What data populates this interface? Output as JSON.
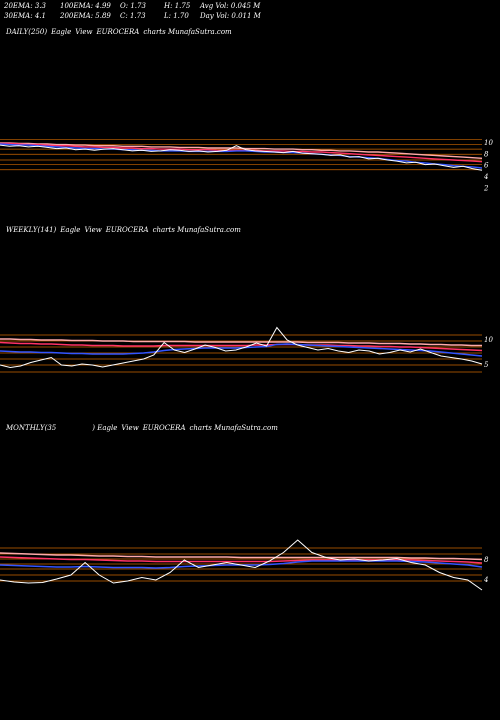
{
  "header": {
    "ema20": "20EMA: 3.3",
    "ema30": "30EMA: 4.1",
    "ema100": "100EMA: 4.99",
    "ema200": "200EMA: 5.89",
    "open": "O: 1.73",
    "close": "C: 1.73",
    "high": "H: 1.75",
    "low": "L: 1.70",
    "avg_vol": "Avg Vol: 0.045 M",
    "day_vol": "Day Vol: 0.011 M"
  },
  "panels": [
    {
      "id": "daily",
      "period_label": "DAILY(250)",
      "pre_label": "Eagle",
      "view_label": "View",
      "symbol": "EUROCERA",
      "site": "charts MunafaSutra.com",
      "ticks": [
        "10",
        "8",
        "6",
        "4",
        "2"
      ]
    },
    {
      "id": "weekly",
      "period_label": "WEEKLY(141)",
      "pre_label": "Eagle",
      "view_label": "View",
      "symbol": "EUROCERA",
      "site": "charts MunafaSutra.com",
      "ticks": [
        "10",
        "5"
      ]
    },
    {
      "id": "monthly",
      "period_label": "MONTHLY(35",
      "pre_label": ") Eagle",
      "view_label": "View",
      "symbol": "EUROCERA",
      "site": "charts MunafaSutra.com",
      "ticks": [
        "8",
        "4"
      ]
    }
  ],
  "chart_data": [
    {
      "type": "line",
      "title": "DAILY(250) Eagle View EUROCERA charts MunafaSutra.com",
      "ylim": [
        0,
        14
      ],
      "y_ticks": [
        10,
        8,
        6,
        4,
        2
      ],
      "grid": false,
      "series": [
        {
          "color": "#ffffff",
          "values": [
            9.6,
            9.4,
            9.5,
            9.3,
            9.4,
            9.2,
            9.0,
            9.1,
            8.8,
            8.9,
            8.7,
            8.9,
            9.0,
            8.8,
            8.6,
            8.7,
            8.5,
            8.6,
            8.8,
            8.7,
            8.5,
            8.6,
            8.4,
            8.5,
            8.7,
            9.5,
            8.8,
            8.6,
            8.5,
            8.4,
            8.3,
            8.5,
            8.2,
            8.1,
            8.0,
            7.8,
            7.9,
            7.5,
            7.6,
            7.2,
            7.3,
            7.0,
            6.8,
            6.5,
            6.6,
            6.2,
            6.3,
            6.0,
            5.7,
            5.9,
            5.5,
            5.2
          ]
        },
        {
          "color": "#3355ff",
          "values": [
            9.8,
            9.7,
            9.6,
            9.6,
            9.5,
            9.4,
            9.3,
            9.2,
            9.1,
            9.0,
            9.0,
            8.9,
            8.9,
            8.8,
            8.8,
            8.7,
            8.7,
            8.6,
            8.6,
            8.6,
            8.5,
            8.5,
            8.5,
            8.5,
            8.5,
            8.6,
            8.6,
            8.5,
            8.4,
            8.4,
            8.3,
            8.3,
            8.2,
            8.1,
            8.0,
            7.9,
            7.8,
            7.6,
            7.5,
            7.4,
            7.3,
            7.1,
            6.9,
            6.8,
            6.6,
            6.5,
            6.3,
            6.2,
            6.0,
            5.9,
            5.8,
            5.6
          ]
        },
        {
          "color": "#ff3366",
          "values": [
            9.9,
            9.9,
            9.8,
            9.7,
            9.7,
            9.6,
            9.5,
            9.5,
            9.4,
            9.3,
            9.3,
            9.2,
            9.2,
            9.1,
            9.1,
            9.0,
            9.0,
            8.9,
            8.9,
            8.9,
            8.8,
            8.8,
            8.8,
            8.7,
            8.7,
            8.7,
            8.7,
            8.7,
            8.6,
            8.6,
            8.6,
            8.5,
            8.5,
            8.4,
            8.4,
            8.3,
            8.2,
            8.1,
            8.0,
            7.9,
            7.8,
            7.7,
            7.6,
            7.5,
            7.4,
            7.3,
            7.2,
            7.1,
            7.0,
            6.9,
            6.8,
            6.7
          ]
        },
        {
          "color": "#ffaaaa",
          "values": [
            10.0,
            10.0,
            9.9,
            9.9,
            9.8,
            9.8,
            9.7,
            9.7,
            9.6,
            9.6,
            9.5,
            9.5,
            9.5,
            9.4,
            9.4,
            9.4,
            9.3,
            9.3,
            9.3,
            9.2,
            9.2,
            9.2,
            9.1,
            9.1,
            9.1,
            9.1,
            9.0,
            9.0,
            9.0,
            8.9,
            8.9,
            8.9,
            8.8,
            8.8,
            8.7,
            8.7,
            8.6,
            8.6,
            8.5,
            8.4,
            8.4,
            8.3,
            8.2,
            8.1,
            8.0,
            7.9,
            7.8,
            7.7,
            7.6,
            7.5,
            7.4,
            7.3
          ]
        }
      ],
      "hlines": [
        10.6,
        9.7,
        8.9,
        8.0,
        7.0,
        6.2,
        5.3
      ]
    },
    {
      "type": "line",
      "title": "WEEKLY(141) Eagle View EUROCERA charts MunafaSutra.com",
      "ylim": [
        0,
        16
      ],
      "y_ticks": [
        10,
        5
      ],
      "grid": false,
      "series": [
        {
          "color": "#ffffff",
          "values": [
            5.0,
            4.5,
            4.8,
            5.5,
            6.0,
            6.5,
            5.0,
            4.8,
            5.2,
            5.0,
            4.6,
            5.0,
            5.4,
            5.8,
            6.2,
            7.0,
            9.5,
            8.0,
            7.5,
            8.2,
            9.0,
            8.5,
            7.8,
            8.0,
            8.6,
            9.4,
            8.8,
            12.5,
            10.0,
            9.0,
            8.5,
            8.0,
            8.3,
            7.8,
            7.5,
            8.0,
            7.8,
            7.2,
            7.5,
            8.0,
            7.6,
            8.2,
            7.5,
            6.8,
            6.5,
            6.2,
            5.8,
            5.2
          ]
        },
        {
          "color": "#3355ff",
          "values": [
            7.8,
            7.7,
            7.6,
            7.6,
            7.5,
            7.5,
            7.4,
            7.3,
            7.3,
            7.2,
            7.2,
            7.2,
            7.2,
            7.3,
            7.4,
            7.6,
            7.9,
            8.1,
            8.2,
            8.3,
            8.4,
            8.4,
            8.4,
            8.4,
            8.5,
            8.6,
            8.7,
            9.1,
            9.2,
            9.1,
            9.0,
            8.9,
            8.8,
            8.7,
            8.6,
            8.5,
            8.4,
            8.3,
            8.2,
            8.1,
            8.0,
            7.9,
            7.8,
            7.6,
            7.4,
            7.2,
            7.0,
            6.8
          ]
        },
        {
          "color": "#ff3366",
          "values": [
            9.5,
            9.4,
            9.3,
            9.3,
            9.2,
            9.2,
            9.1,
            9.0,
            9.0,
            8.9,
            8.9,
            8.9,
            8.8,
            8.8,
            8.8,
            8.8,
            8.9,
            8.9,
            8.9,
            8.9,
            8.9,
            8.9,
            8.9,
            8.9,
            8.9,
            9.0,
            9.0,
            9.1,
            9.1,
            9.1,
            9.0,
            9.0,
            9.0,
            8.9,
            8.9,
            8.8,
            8.8,
            8.7,
            8.7,
            8.6,
            8.6,
            8.5,
            8.4,
            8.3,
            8.2,
            8.1,
            8.0,
            7.9
          ]
        },
        {
          "color": "#ffaaaa",
          "values": [
            10.2,
            10.2,
            10.1,
            10.1,
            10.0,
            10.0,
            10.0,
            9.9,
            9.9,
            9.9,
            9.8,
            9.8,
            9.8,
            9.7,
            9.7,
            9.7,
            9.7,
            9.7,
            9.7,
            9.6,
            9.6,
            9.6,
            9.6,
            9.6,
            9.6,
            9.6,
            9.6,
            9.6,
            9.6,
            9.6,
            9.5,
            9.5,
            9.5,
            9.5,
            9.4,
            9.4,
            9.4,
            9.3,
            9.3,
            9.3,
            9.2,
            9.2,
            9.1,
            9.1,
            9.0,
            9.0,
            8.9,
            8.9
          ]
        }
      ],
      "hlines": [
        11.0,
        9.8,
        8.6,
        7.4,
        6.2,
        5.0,
        3.6
      ]
    },
    {
      "type": "line",
      "title": "MONTHLY(35) Eagle View EUROCERA charts MunafaSutra.com",
      "ylim": [
        0,
        16
      ],
      "y_ticks": [
        8,
        4
      ],
      "grid": false,
      "series": [
        {
          "color": "#ffffff",
          "values": [
            4.0,
            3.6,
            3.4,
            3.5,
            4.2,
            5.0,
            7.5,
            5.0,
            3.4,
            3.8,
            4.5,
            4.0,
            5.5,
            8.0,
            6.5,
            7.0,
            7.5,
            7.0,
            6.5,
            7.8,
            9.5,
            12.0,
            9.5,
            8.5,
            8.0,
            8.2,
            7.8,
            8.0,
            8.3,
            7.5,
            7.0,
            5.5,
            4.5,
            4.0,
            2.0
          ]
        },
        {
          "color": "#3355ff",
          "values": [
            7.0,
            6.9,
            6.8,
            6.7,
            6.6,
            6.6,
            6.7,
            6.6,
            6.5,
            6.5,
            6.5,
            6.4,
            6.5,
            6.7,
            6.8,
            6.9,
            7.0,
            7.0,
            7.0,
            7.1,
            7.3,
            7.6,
            7.8,
            7.8,
            7.8,
            7.8,
            7.8,
            7.8,
            7.8,
            7.7,
            7.6,
            7.4,
            7.2,
            7.0,
            6.6
          ]
        },
        {
          "color": "#ff3366",
          "values": [
            8.6,
            8.5,
            8.4,
            8.3,
            8.2,
            8.1,
            8.1,
            8.0,
            7.9,
            7.8,
            7.8,
            7.7,
            7.7,
            7.7,
            7.7,
            7.7,
            7.7,
            7.7,
            7.7,
            7.7,
            7.8,
            7.9,
            8.0,
            8.0,
            8.0,
            8.0,
            8.0,
            8.0,
            8.0,
            8.0,
            7.9,
            7.8,
            7.7,
            7.6,
            7.4
          ]
        },
        {
          "color": "#ffaaaa",
          "values": [
            9.4,
            9.3,
            9.2,
            9.1,
            9.0,
            9.0,
            8.9,
            8.8,
            8.8,
            8.7,
            8.7,
            8.6,
            8.6,
            8.6,
            8.6,
            8.6,
            8.6,
            8.5,
            8.5,
            8.5,
            8.5,
            8.5,
            8.5,
            8.5,
            8.5,
            8.5,
            8.5,
            8.5,
            8.5,
            8.4,
            8.4,
            8.3,
            8.3,
            8.2,
            8.1
          ]
        }
      ],
      "hlines": [
        10.4,
        9.2,
        8.2,
        7.2,
        6.2,
        5.0,
        3.8
      ]
    }
  ],
  "colors": {
    "background": "#000000",
    "text": "#ffffff",
    "band_lines": "#cc6600"
  }
}
